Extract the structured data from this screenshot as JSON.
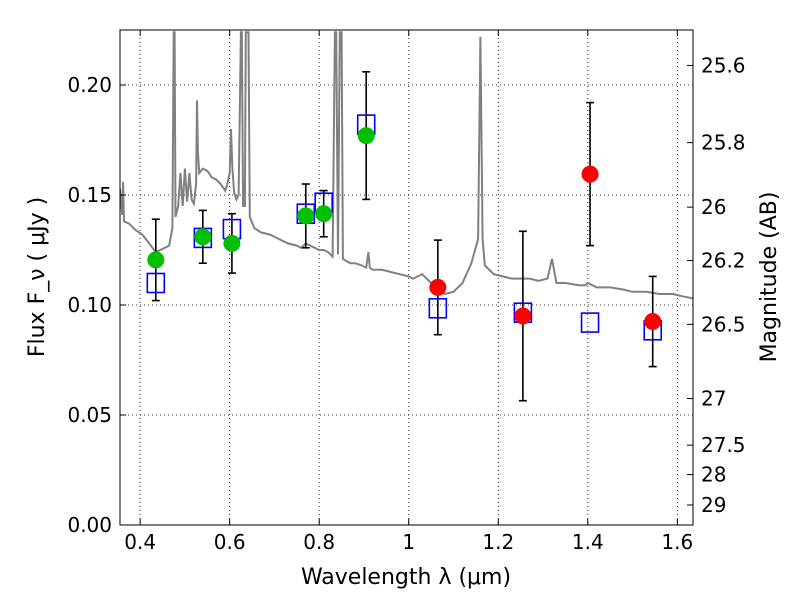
{
  "chart_data": {
    "type": "scatter",
    "xlabel": "Wavelength  λ (μm)",
    "ylabel": "Flux  F_ν  ( μJy )",
    "ylabel_right": "Magnitude (AB)",
    "xlim": [
      0.355,
      1.635
    ],
    "ylim": [
      0.0,
      0.225
    ],
    "x_ticks": [
      0.4,
      0.6,
      0.8,
      1.0,
      1.2,
      1.4,
      1.6
    ],
    "x_tick_labels": [
      "0.4",
      "0.6",
      "0.8",
      "1",
      "1.2",
      "1.4",
      "1.6"
    ],
    "y_ticks": [
      0.0,
      0.05,
      0.1,
      0.15,
      0.2
    ],
    "y_tick_labels": [
      "0.00",
      "0.05",
      "0.10",
      "0.15",
      "0.20"
    ],
    "right_ticks": [
      {
        "label": "25.6",
        "flux": 0.2089
      },
      {
        "label": "25.8",
        "flux": 0.1738
      },
      {
        "label": "26",
        "flux": 0.1445
      },
      {
        "label": "26.2",
        "flux": 0.1202
      },
      {
        "label": "26.5",
        "flux": 0.0912
      },
      {
        "label": "27",
        "flux": 0.0575
      },
      {
        "label": "27.5",
        "flux": 0.0363
      },
      {
        "label": "28",
        "flux": 0.0229
      },
      {
        "label": "29",
        "flux": 0.0091
      }
    ],
    "grid": true,
    "colors": {
      "spectrum": "#808080",
      "hst_points": "#00c000",
      "ir_points": "#ff0000",
      "model_boxes": "#0000ff",
      "errorbars": "#000000"
    },
    "series": [
      {
        "kind": "line",
        "points": [
          [
            0.355,
            0.153
          ],
          [
            0.36,
            0.141
          ],
          [
            0.362,
            0.156
          ],
          [
            0.364,
            0.138
          ],
          [
            0.375,
            0.137
          ],
          [
            0.39,
            0.134
          ],
          [
            0.405,
            0.132
          ],
          [
            0.42,
            0.128
          ],
          [
            0.435,
            0.124
          ],
          [
            0.445,
            0.125
          ],
          [
            0.455,
            0.126
          ],
          [
            0.465,
            0.127
          ],
          [
            0.472,
            0.135
          ],
          [
            0.475,
            0.224
          ],
          [
            0.477,
            0.224
          ],
          [
            0.479,
            0.14
          ],
          [
            0.485,
            0.145
          ],
          [
            0.49,
            0.16
          ],
          [
            0.495,
            0.145
          ],
          [
            0.5,
            0.162
          ],
          [
            0.505,
            0.147
          ],
          [
            0.51,
            0.16
          ],
          [
            0.515,
            0.148
          ],
          [
            0.52,
            0.146
          ],
          [
            0.525,
            0.155
          ],
          [
            0.527,
            0.193
          ],
          [
            0.529,
            0.17
          ],
          [
            0.532,
            0.16
          ],
          [
            0.54,
            0.162
          ],
          [
            0.55,
            0.161
          ],
          [
            0.56,
            0.158
          ],
          [
            0.57,
            0.157
          ],
          [
            0.58,
            0.155
          ],
          [
            0.59,
            0.152
          ],
          [
            0.595,
            0.155
          ],
          [
            0.6,
            0.16
          ],
          [
            0.603,
            0.18
          ],
          [
            0.606,
            0.162
          ],
          [
            0.61,
            0.151
          ],
          [
            0.615,
            0.148
          ],
          [
            0.62,
            0.15
          ],
          [
            0.625,
            0.224
          ],
          [
            0.627,
            0.224
          ],
          [
            0.63,
            0.145
          ],
          [
            0.634,
            0.145
          ],
          [
            0.636,
            0.224
          ],
          [
            0.638,
            0.224
          ],
          [
            0.64,
            0.224
          ],
          [
            0.642,
            0.224
          ],
          [
            0.645,
            0.14
          ],
          [
            0.655,
            0.135
          ],
          [
            0.67,
            0.133
          ],
          [
            0.69,
            0.132
          ],
          [
            0.71,
            0.13
          ],
          [
            0.73,
            0.128
          ],
          [
            0.75,
            0.127
          ],
          [
            0.76,
            0.126
          ],
          [
            0.77,
            0.128
          ],
          [
            0.78,
            0.127
          ],
          [
            0.79,
            0.126
          ],
          [
            0.8,
            0.125
          ],
          [
            0.81,
            0.125
          ],
          [
            0.82,
            0.124
          ],
          [
            0.83,
            0.122
          ],
          [
            0.835,
            0.224
          ],
          [
            0.838,
            0.224
          ],
          [
            0.842,
            0.123
          ],
          [
            0.846,
            0.224
          ],
          [
            0.85,
            0.224
          ],
          [
            0.853,
            0.121
          ],
          [
            0.86,
            0.12
          ],
          [
            0.87,
            0.119
          ],
          [
            0.88,
            0.119
          ],
          [
            0.895,
            0.118
          ],
          [
            0.905,
            0.117
          ],
          [
            0.91,
            0.124
          ],
          [
            0.913,
            0.117
          ],
          [
            0.92,
            0.116
          ],
          [
            0.94,
            0.116
          ],
          [
            0.96,
            0.115
          ],
          [
            0.98,
            0.114
          ],
          [
            1.0,
            0.113
          ],
          [
            1.01,
            0.112
          ],
          [
            1.02,
            0.113
          ],
          [
            1.03,
            0.114
          ],
          [
            1.04,
            0.112
          ],
          [
            1.055,
            0.109
          ],
          [
            1.065,
            0.11
          ],
          [
            1.08,
            0.105
          ],
          [
            1.1,
            0.106
          ],
          [
            1.12,
            0.11
          ],
          [
            1.14,
            0.119
          ],
          [
            1.155,
            0.13
          ],
          [
            1.16,
            0.222
          ],
          [
            1.165,
            0.13
          ],
          [
            1.17,
            0.118
          ],
          [
            1.19,
            0.114
          ],
          [
            1.21,
            0.113
          ],
          [
            1.23,
            0.112
          ],
          [
            1.25,
            0.112
          ],
          [
            1.27,
            0.112
          ],
          [
            1.29,
            0.111
          ],
          [
            1.31,
            0.112
          ],
          [
            1.32,
            0.121
          ],
          [
            1.33,
            0.11
          ],
          [
            1.35,
            0.11
          ],
          [
            1.38,
            0.109
          ],
          [
            1.395,
            0.109
          ],
          [
            1.4,
            0.11
          ],
          [
            1.42,
            0.108
          ],
          [
            1.45,
            0.108
          ],
          [
            1.48,
            0.107
          ],
          [
            1.5,
            0.106
          ],
          [
            1.53,
            0.106
          ],
          [
            1.56,
            0.105
          ],
          [
            1.59,
            0.105
          ],
          [
            1.61,
            0.104
          ],
          [
            1.635,
            0.103
          ]
        ]
      },
      {
        "kind": "points-with-errors",
        "color": "green",
        "points": [
          {
            "x": 0.435,
            "y": 0.1205,
            "err": 0.0185
          },
          {
            "x": 0.54,
            "y": 0.131,
            "err": 0.012
          },
          {
            "x": 0.605,
            "y": 0.128,
            "err": 0.0135
          },
          {
            "x": 0.77,
            "y": 0.1405,
            "err": 0.0145
          },
          {
            "x": 0.81,
            "y": 0.1415,
            "err": 0.0105
          },
          {
            "x": 0.905,
            "y": 0.177,
            "err": 0.029
          }
        ]
      },
      {
        "kind": "points-with-errors",
        "color": "red",
        "points": [
          {
            "x": 1.065,
            "y": 0.108,
            "err": 0.0215
          },
          {
            "x": 1.255,
            "y": 0.095,
            "err": 0.0385
          },
          {
            "x": 1.405,
            "y": 0.1595,
            "err": 0.0325
          },
          {
            "x": 1.545,
            "y": 0.0925,
            "err": 0.0205
          }
        ]
      },
      {
        "kind": "open-squares",
        "color": "blue",
        "points": [
          {
            "x": 0.435,
            "y": 0.11
          },
          {
            "x": 0.54,
            "y": 0.1305
          },
          {
            "x": 0.605,
            "y": 0.1345
          },
          {
            "x": 0.77,
            "y": 0.1415
          },
          {
            "x": 0.81,
            "y": 0.1465
          },
          {
            "x": 0.905,
            "y": 0.182
          },
          {
            "x": 1.065,
            "y": 0.0985
          },
          {
            "x": 1.255,
            "y": 0.0965
          },
          {
            "x": 1.405,
            "y": 0.092
          },
          {
            "x": 1.545,
            "y": 0.0885
          }
        ]
      }
    ]
  }
}
